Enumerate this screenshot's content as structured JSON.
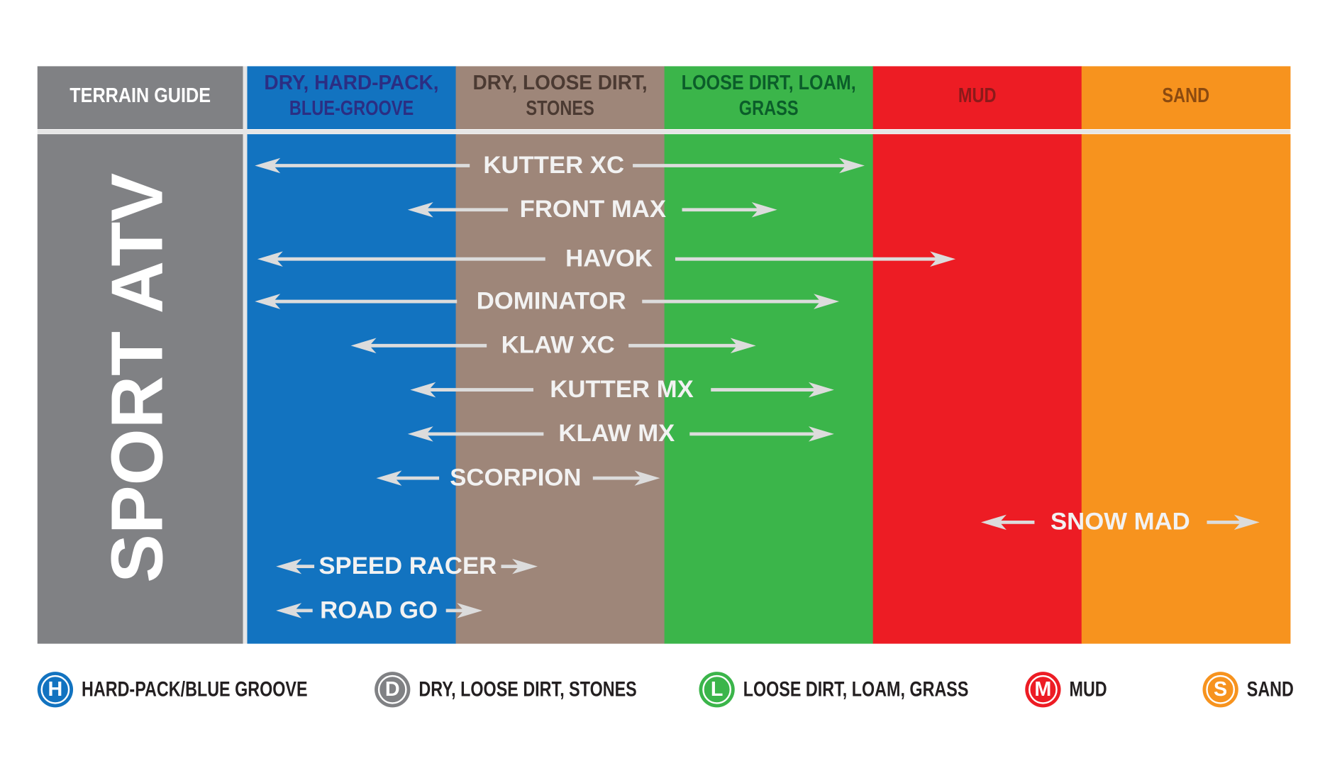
{
  "header": {
    "title": "TERRAIN GUIDE"
  },
  "columns": [
    {
      "lines": [
        "DRY, HARD-PACK,",
        "BLUE-GROOVE"
      ]
    },
    {
      "lines": [
        "DRY, LOOSE DIRT,",
        "STONES"
      ]
    },
    {
      "lines": [
        "LOOSE DIRT, LOAM,",
        "GRASS"
      ]
    },
    {
      "lines": [
        "MUD"
      ]
    },
    {
      "lines": [
        "SAND"
      ]
    }
  ],
  "side_label": "SPORT ATV",
  "tires": [
    "KUTTER XC",
    "FRONT MAX",
    "HAVOK",
    "DOMINATOR",
    "KLAW XC",
    "KUTTER MX",
    "KLAW MX",
    "SCORPION",
    "SNOW MAD",
    "SPEED RACER",
    "ROAD GO"
  ],
  "legend": [
    {
      "icon": "H",
      "label": "HARD-PACK/BLUE GROOVE"
    },
    {
      "icon": "D",
      "label": "DRY, LOOSE DIRT, STONES"
    },
    {
      "icon": "L",
      "label": "LOOSE DIRT, LOAM, GRASS"
    },
    {
      "icon": "M",
      "label": "MUD"
    },
    {
      "icon": "S",
      "label": "SAND"
    }
  ]
}
